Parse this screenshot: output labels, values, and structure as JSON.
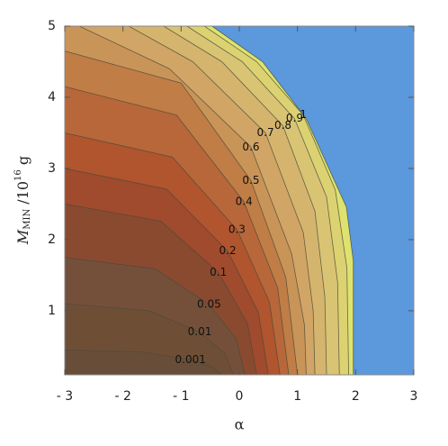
{
  "chart_data": {
    "type": "contour",
    "xlabel": "α",
    "ylabel": {
      "main": "M",
      "sub": "MIN",
      "mid": " /10",
      "sup": "16",
      "end": " g"
    },
    "xlim": [
      -3,
      3
    ],
    "ylim": [
      0.1,
      5
    ],
    "xticks": [
      {
        "value": -3,
        "label": "- 3"
      },
      {
        "value": -2,
        "label": "- 2"
      },
      {
        "value": -1,
        "label": "- 1"
      },
      0,
      1,
      2,
      3
    ],
    "yticks": [
      1,
      2,
      3,
      4,
      5
    ],
    "excluded_color": "#5b98dc",
    "boundary": {
      "color": "#dde36e",
      "x": [
        -0.47,
        0.4,
        1.15,
        1.84,
        1.96,
        1.96
      ],
      "y": [
        5,
        4.5,
        3.7,
        2.46,
        1.7,
        0.1
      ]
    },
    "contours": [
      {
        "level": 1,
        "color": "#dcd272",
        "x": [
          -0.6,
          0.3,
          1.1,
          1.65,
          1.85,
          1.88
        ],
        "y": [
          5,
          4.5,
          3.75,
          2.7,
          1.6,
          0.1
        ]
      },
      {
        "level": 0.9,
        "color": "#d9c474",
        "x": [
          -0.9,
          0.05,
          0.95,
          1.5,
          1.69,
          1.72
        ],
        "y": [
          5,
          4.5,
          3.7,
          2.6,
          1.4,
          0.1
        ]
      },
      {
        "level": 0.8,
        "color": "#d5b56e",
        "x": [
          -1.3,
          -0.3,
          0.75,
          1.3,
          1.47,
          1.5
        ],
        "y": [
          5,
          4.5,
          3.6,
          2.4,
          1.2,
          0.1
        ]
      },
      {
        "level": 0.7,
        "color": "#d1a565",
        "x": [
          -1.9,
          -0.8,
          0.45,
          1.1,
          1.27,
          1.3
        ],
        "y": [
          5,
          4.5,
          3.5,
          2.1,
          1.0,
          0.1
        ]
      },
      {
        "level": 0.6,
        "color": "#c99458",
        "x": [
          -2.75,
          -1.2,
          0.2,
          0.9,
          1.12,
          1.15
        ],
        "y": [
          5,
          4.4,
          3.3,
          1.8,
          0.8,
          0.1
        ]
      },
      {
        "level": 0.5,
        "color": "#c07d45",
        "x": [
          -3,
          -1,
          0.2,
          0.8,
          1.0
        ],
        "y": [
          4.65,
          4.2,
          2.83,
          1.47,
          0.1
        ]
      },
      {
        "level": 0.4,
        "color": "#b8673a",
        "x": [
          -3,
          -1.08,
          0.08,
          0.66,
          0.85
        ],
        "y": [
          4.15,
          3.75,
          2.53,
          1.32,
          0.1
        ]
      },
      {
        "level": 0.3,
        "color": "#b0552e",
        "x": [
          -3,
          -1.15,
          -0.04,
          0.52,
          0.7
        ],
        "y": [
          3.5,
          3.16,
          2.14,
          1.12,
          0.1
        ]
      },
      {
        "level": 0.2,
        "color": "#a04a2e",
        "x": [
          -3,
          -1.25,
          -0.2,
          0.33,
          0.5
        ],
        "y": [
          3.0,
          2.71,
          1.84,
          0.97,
          0.1
        ]
      },
      {
        "level": 0.1,
        "color": "#8a4a30",
        "x": [
          -3,
          -1.35,
          -0.36,
          0.14,
          0.3
        ],
        "y": [
          2.5,
          2.26,
          1.54,
          0.82,
          0.1
        ]
      },
      {
        "level": 0.05,
        "color": "#74503a",
        "x": [
          -3,
          -1.45,
          -0.52,
          -0.05,
          0.1
        ],
        "y": [
          1.75,
          1.59,
          1.09,
          0.6,
          0.1
        ]
      },
      {
        "level": 0.01,
        "color": "#6e4f36",
        "x": [
          -3,
          -1.55,
          -0.68,
          -0.25,
          -0.1
        ],
        "y": [
          1.1,
          1.0,
          0.7,
          0.4,
          0.1
        ]
      },
      {
        "level": 0.001,
        "color": "#684e38",
        "x": [
          -3,
          -1.65,
          -0.84,
          -0.44,
          -0.3
        ],
        "y": [
          0.45,
          0.42,
          0.31,
          0.2,
          0.1
        ]
      }
    ]
  }
}
